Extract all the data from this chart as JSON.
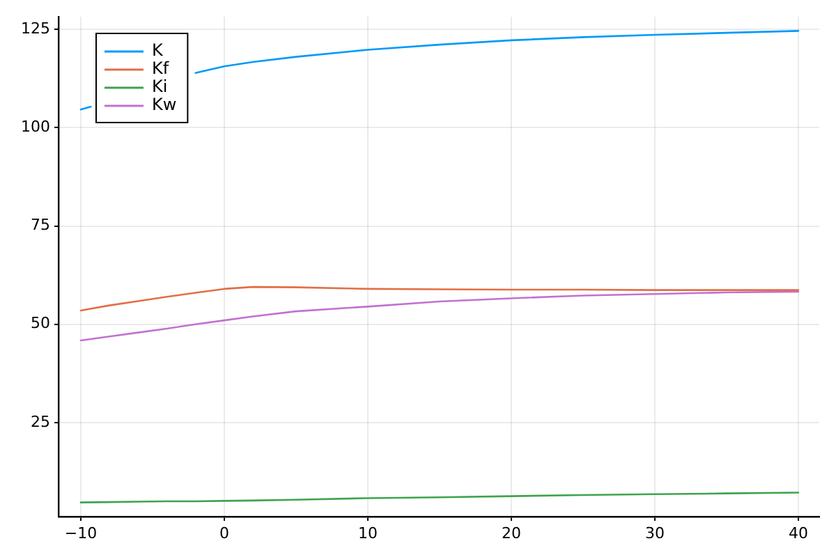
{
  "chart_data": {
    "type": "line",
    "x": [
      -10,
      -8,
      -6,
      -4,
      -2,
      0,
      2,
      5,
      10,
      15,
      20,
      25,
      30,
      35,
      40
    ],
    "series": [
      {
        "name": "K",
        "color": "#009af9",
        "x": [
          -10,
          -9.3,
          -6,
          -2,
          0,
          2,
          5,
          10,
          15,
          20,
          25,
          30,
          35,
          40
        ],
        "values": [
          104.6,
          105.3,
          null,
          113.9,
          115.6,
          116.7,
          118.0,
          119.8,
          121.1,
          122.2,
          123.0,
          123.6,
          124.1,
          124.6
        ]
      },
      {
        "name": "Kf",
        "color": "#e26f46",
        "values": [
          53.5,
          54.8,
          55.9,
          57.0,
          58.0,
          59.0,
          59.5,
          59.4,
          59.0,
          58.9,
          58.8,
          58.8,
          58.7,
          58.7,
          58.7
        ]
      },
      {
        "name": "Ki",
        "color": "#3da44d",
        "values": [
          4.7,
          4.8,
          4.9,
          5.0,
          5.0,
          5.1,
          5.2,
          5.4,
          5.8,
          6.0,
          6.3,
          6.6,
          6.8,
          7.0,
          7.2
        ]
      },
      {
        "name": "Kw",
        "color": "#c271d2",
        "values": [
          45.9,
          46.9,
          47.9,
          48.9,
          50.0,
          51.0,
          52.0,
          53.3,
          54.5,
          55.8,
          56.6,
          57.3,
          57.7,
          58.1,
          58.3
        ]
      }
    ],
    "xlim": [
      -11.55,
      41.46
    ],
    "xticks": [
      -10,
      0,
      10,
      20,
      30,
      40
    ],
    "ylim": [
      1.1,
      128.2
    ],
    "yticks": [
      25,
      50,
      75,
      100,
      125
    ],
    "grid": true,
    "legend": "top left",
    "marker": "none",
    "line_style": "solid"
  }
}
